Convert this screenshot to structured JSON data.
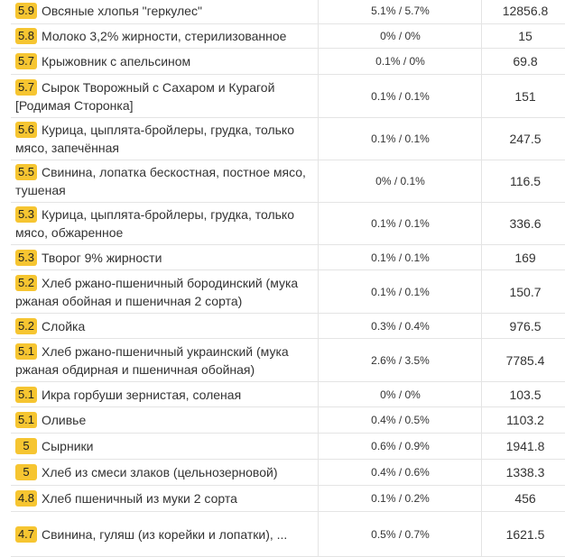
{
  "rows": [
    {
      "score": "5.9",
      "name": "Овсяные хлопья \"геркулес\"",
      "ratio": "5.1% / 5.7%",
      "value": "12856.8"
    },
    {
      "score": "5.8",
      "name": "Молоко 3,2% жирности, стерилизованное",
      "ratio": "0% / 0%",
      "value": "15"
    },
    {
      "score": "5.7",
      "name": "Крыжовник с апельсином",
      "ratio": "0.1% / 0%",
      "value": "69.8"
    },
    {
      "score": "5.7",
      "name": "Сырок Творожный с Сахаром и Курагой [Родимая Сторонка]",
      "ratio": "0.1% / 0.1%",
      "value": "151"
    },
    {
      "score": "5.6",
      "name": "Курица, цыплята-бройлеры, грудка, только мясо, запечённая",
      "ratio": "0.1% / 0.1%",
      "value": "247.5"
    },
    {
      "score": "5.5",
      "name": "Свинина, лопатка бескостная, постное мясо, тушеная",
      "ratio": "0% / 0.1%",
      "value": "116.5"
    },
    {
      "score": "5.3",
      "name": "Курица, цыплята-бройлеры, грудка, только мясо, обжаренное",
      "ratio": "0.1% / 0.1%",
      "value": "336.6"
    },
    {
      "score": "5.3",
      "name": "Творог 9% жирности",
      "ratio": "0.1% / 0.1%",
      "value": "169"
    },
    {
      "score": "5.2",
      "name": "Хлеб ржано-пшеничный бородинский (мука ржаная обойная и пшеничная 2 сорта)",
      "ratio": "0.1% / 0.1%",
      "value": "150.7"
    },
    {
      "score": "5.2",
      "name": "Слойка",
      "ratio": "0.3% / 0.4%",
      "value": "976.5"
    },
    {
      "score": "5.1",
      "name": "Хлеб ржано-пшеничный украинский (мука ржаная обдирная и пшеничная обойная)",
      "ratio": "2.6% / 3.5%",
      "value": "7785.4"
    },
    {
      "score": "5.1",
      "name": "Икра горбуши зернистая, соленая",
      "ratio": "0% / 0%",
      "value": "103.5"
    },
    {
      "score": "5.1",
      "name": "Оливье",
      "ratio": "0.4% / 0.5%",
      "value": "1103.2"
    },
    {
      "score": "5",
      "name": "Сырники",
      "ratio": "0.6% / 0.9%",
      "value": "1941.8"
    },
    {
      "score": "5",
      "name": "Хлеб из смеси злаков (цельнозерновой)",
      "ratio": "0.4% / 0.6%",
      "value": "1338.3"
    },
    {
      "score": "4.8",
      "name": "Хлеб пшеничный из муки 2 сорта",
      "ratio": "0.1% / 0.2%",
      "value": "456"
    },
    {
      "score": "4.7",
      "name": "Свинина, гуляш (из корейки и лопатки), ...",
      "ratio": "0.5% / 0.7%",
      "value": "1621.5"
    }
  ]
}
